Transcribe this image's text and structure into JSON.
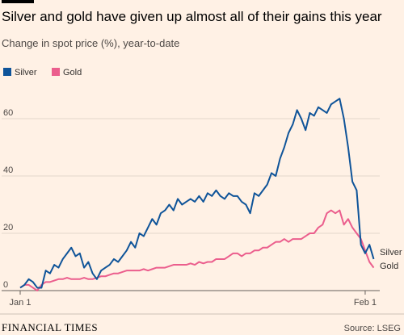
{
  "chart_data": {
    "type": "line",
    "title": "Silver and gold have given up almost all of their gains this year",
    "subtitle": "Change in spot price (%), year-to-date",
    "source": "Source: LSEG",
    "brand": "FINANCIAL TIMES",
    "x": [
      0,
      1,
      2,
      3,
      4,
      5,
      6,
      7,
      8,
      9,
      10,
      11,
      12,
      13,
      14,
      15,
      16,
      17,
      18,
      19,
      20,
      21,
      22,
      23,
      24,
      25,
      26,
      27,
      28,
      29,
      30,
      31,
      32,
      33,
      34,
      35,
      36,
      37,
      38,
      39,
      40,
      41,
      42,
      43,
      44,
      45,
      46,
      47,
      48,
      49,
      50,
      51,
      52,
      53,
      54,
      55,
      56,
      57,
      58,
      59,
      60,
      61,
      62,
      63,
      64,
      65,
      66,
      67,
      68,
      69,
      70,
      71,
      72,
      73,
      74,
      75,
      76,
      77,
      78,
      79,
      80,
      81,
      82,
      83
    ],
    "series": [
      {
        "name": "Silver",
        "color": "#0f5499",
        "values": [
          1,
          2,
          4,
          3,
          1,
          1,
          7,
          6,
          9,
          8,
          11,
          13,
          15,
          12,
          13,
          8,
          10,
          6,
          4,
          7,
          8,
          9,
          11,
          10,
          12,
          14,
          17,
          15,
          20,
          19,
          22,
          25,
          23,
          27,
          28,
          30,
          28,
          32,
          30,
          31,
          32,
          31,
          33,
          31,
          34,
          33,
          35,
          33,
          32,
          34,
          33,
          33,
          31,
          30,
          27,
          34,
          33,
          35,
          37,
          41,
          40,
          46,
          50,
          55,
          58,
          63,
          60,
          56,
          62,
          61,
          64,
          63,
          62,
          65,
          66,
          67,
          60,
          50,
          38,
          35,
          16,
          13,
          16,
          11
        ]
      },
      {
        "name": "Gold",
        "color": "#eb5e8d",
        "values": [
          1,
          2,
          2,
          1,
          0,
          2,
          3,
          3,
          3.5,
          4,
          4,
          4.5,
          4,
          4,
          4,
          4.5,
          4,
          4,
          4.5,
          5,
          5,
          5.5,
          6,
          6,
          6.5,
          7,
          7,
          7,
          7,
          7.5,
          7,
          7.5,
          8,
          8,
          8,
          8.5,
          9,
          9,
          9,
          9,
          9.5,
          9,
          10,
          9.5,
          10,
          10,
          11,
          11,
          11,
          12,
          13,
          13,
          12,
          13,
          13,
          14,
          14,
          15,
          15,
          16,
          17,
          17,
          18,
          17,
          18,
          18,
          18,
          19,
          20,
          20,
          22,
          23,
          27,
          28,
          27,
          28,
          23,
          25,
          22,
          20,
          18,
          14,
          10,
          8
        ]
      }
    ],
    "xlim": [
      0,
      83
    ],
    "xticks": [
      {
        "value": 0,
        "label": "Jan 1"
      },
      {
        "value": 81,
        "label": "Feb 1"
      }
    ],
    "ylim": [
      0,
      70
    ],
    "yticks": [
      0,
      20,
      40,
      60
    ],
    "grid": true
  }
}
